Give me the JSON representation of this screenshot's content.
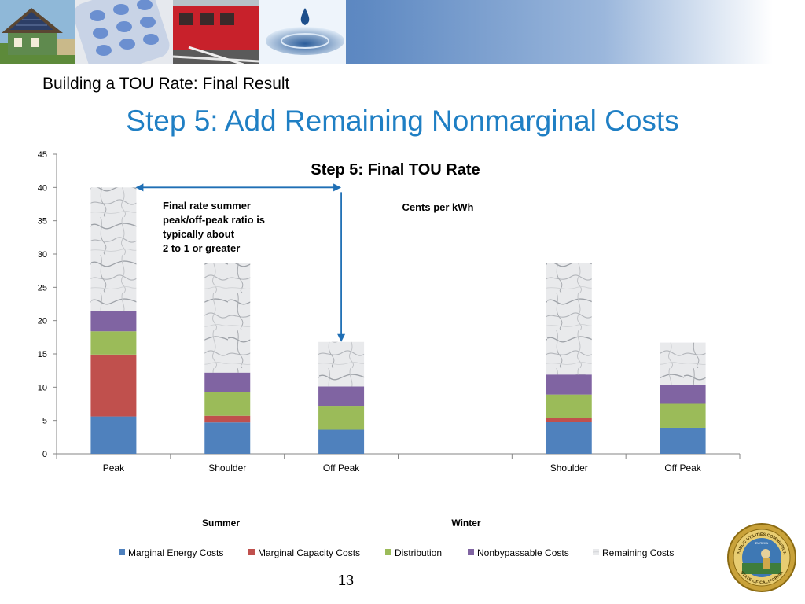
{
  "header": {
    "subtitle": "Building a TOU Rate:  Final Result",
    "title": "Step 5: Add Remaining Nonmarginal Costs",
    "photos": [
      "solar-house-photo",
      "phone-keypad-photo",
      "train-photo",
      "water-drop-photo"
    ]
  },
  "chart_data": {
    "type": "bar",
    "stacked": true,
    "title": "Step 5: Final TOU Rate",
    "unit_label": "Cents per kWh",
    "categories": [
      "Peak",
      "Shoulder",
      "Off Peak",
      "",
      "Shoulder",
      "Off Peak"
    ],
    "groups": [
      {
        "label": "Summer",
        "categories": [
          0,
          1,
          2
        ]
      },
      {
        "label": "Winter",
        "categories": [
          3,
          4,
          5
        ]
      }
    ],
    "ylim": [
      0,
      45
    ],
    "yticks": [
      0,
      5,
      10,
      15,
      20,
      25,
      30,
      35,
      40,
      45
    ],
    "grid": false,
    "legend_position": "bottom",
    "series": [
      {
        "name": "Marginal Energy Costs",
        "color": "#4f81bd",
        "values": [
          5.6,
          4.7,
          3.6,
          0,
          4.8,
          3.9
        ]
      },
      {
        "name": "Marginal Capacity Costs",
        "color": "#c0504d",
        "values": [
          9.3,
          1.0,
          0,
          0,
          0.6,
          0
        ]
      },
      {
        "name": "Distribution",
        "color": "#9bbb59",
        "values": [
          3.5,
          3.6,
          3.6,
          0,
          3.5,
          3.6
        ]
      },
      {
        "name": "Nonbypassable Costs",
        "color": "#8064a2",
        "values": [
          3.0,
          2.9,
          2.9,
          0,
          3.0,
          2.9
        ]
      },
      {
        "name": "Remaining Costs",
        "color": "#dcdcdc",
        "pattern": "marble",
        "values": [
          18.6,
          16.4,
          6.7,
          0,
          16.8,
          6.3
        ]
      }
    ],
    "annotation": {
      "lines": [
        "Final rate summer",
        "peak/off-peak ratio is",
        "typically about",
        "2 to 1 or greater"
      ],
      "arrow_color": "#1f6fb5"
    }
  },
  "footer": {
    "page_number": "13",
    "seal_text": [
      "PUBLIC UTILITIES COMMISSION",
      "STATE OF CALIFORNIA",
      "EUREKA"
    ]
  }
}
